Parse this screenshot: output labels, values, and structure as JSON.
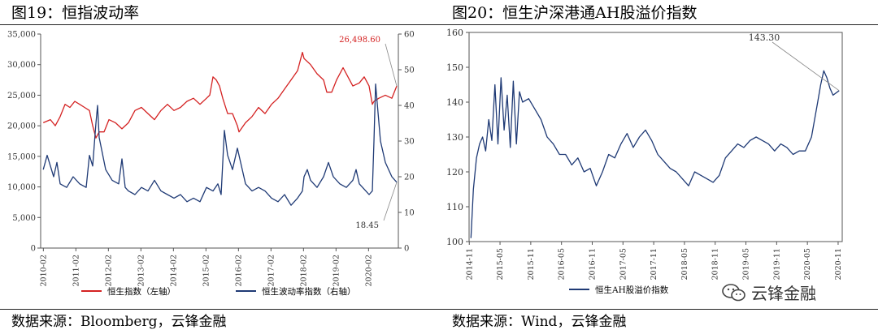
{
  "left_panel": {
    "title": "图19：恒指波动率",
    "source": "数据来源：Bloomberg，云锋金融"
  },
  "right_panel": {
    "title": "图20：恒生沪深港通AH股溢价指数",
    "source": "数据来源：Wind，云锋金融"
  },
  "watermark": {
    "icon": "wechat-icon",
    "text": "云锋金融"
  },
  "colors": {
    "red": "#d42222",
    "navy": "#1f3a75",
    "axis": "#555555"
  },
  "chart_data": [
    {
      "type": "line",
      "title": "",
      "x_tick_labels": [
        "2010-02",
        "2011-02",
        "2012-02",
        "2013-02",
        "2014-02",
        "2015-02",
        "2016-02",
        "2017-02",
        "2018-02",
        "2019-02",
        "2020-02"
      ],
      "x_range": [
        2010.0,
        2021.0
      ],
      "left_axis": {
        "range": [
          0,
          35000
        ],
        "tick_labels": [
          "0",
          "5,000",
          "10,000",
          "15,000",
          "20,000",
          "25,000",
          "30,000",
          "35,000"
        ]
      },
      "right_axis": {
        "range": [
          0,
          60
        ],
        "tick_labels": [
          "0",
          "10",
          "20",
          "30",
          "40",
          "50",
          "60"
        ]
      },
      "legend_position": "bottom",
      "annotations": [
        {
          "text": "26,498.60",
          "series": "恒生指数（左轴）"
        },
        {
          "text": "18.45",
          "series": "恒生波动率指数（右轴）"
        }
      ],
      "series": [
        {
          "name": "恒生指数（左轴）",
          "axis": "left",
          "x": [
            2010.08,
            2010.3,
            2010.45,
            2010.6,
            2010.75,
            2010.9,
            2011.05,
            2011.2,
            2011.35,
            2011.5,
            2011.6,
            2011.7,
            2011.8,
            2011.95,
            2012.1,
            2012.3,
            2012.5,
            2012.7,
            2012.9,
            2013.1,
            2013.3,
            2013.5,
            2013.7,
            2013.9,
            2014.1,
            2014.3,
            2014.5,
            2014.7,
            2014.9,
            2015.1,
            2015.2,
            2015.3,
            2015.4,
            2015.5,
            2015.6,
            2015.75,
            2015.9,
            2016.05,
            2016.1,
            2016.3,
            2016.5,
            2016.7,
            2016.9,
            2017.1,
            2017.3,
            2017.5,
            2017.7,
            2017.9,
            2018.05,
            2018.1,
            2018.3,
            2018.5,
            2018.7,
            2018.8,
            2018.95,
            2019.1,
            2019.3,
            2019.45,
            2019.6,
            2019.8,
            2019.95,
            2020.1,
            2020.2,
            2020.25,
            2020.4,
            2020.6,
            2020.8,
            2020.95
          ],
          "values": [
            20500,
            21000,
            20000,
            21500,
            23500,
            23000,
            24000,
            23500,
            23000,
            22500,
            20000,
            18000,
            19000,
            19000,
            21000,
            20500,
            19500,
            20500,
            22500,
            23000,
            22000,
            21000,
            22500,
            23500,
            22500,
            23000,
            24000,
            24500,
            23500,
            24500,
            25000,
            28000,
            27500,
            26500,
            24500,
            22000,
            22000,
            20000,
            19000,
            20500,
            21500,
            23000,
            22000,
            23500,
            24500,
            26000,
            27500,
            29000,
            32000,
            31000,
            30000,
            28500,
            27500,
            25500,
            25500,
            27500,
            29500,
            28000,
            26500,
            27000,
            28000,
            26500,
            23500,
            24000,
            24500,
            25000,
            24500,
            26498
          ]
        },
        {
          "name": "恒生波动率指数（右轴）",
          "axis": "right",
          "x": [
            2010.08,
            2010.2,
            2010.4,
            2010.5,
            2010.6,
            2010.8,
            2011.0,
            2011.2,
            2011.4,
            2011.5,
            2011.6,
            2011.7,
            2011.75,
            2011.8,
            2012.0,
            2012.2,
            2012.4,
            2012.5,
            2012.6,
            2012.7,
            2012.9,
            2013.1,
            2013.3,
            2013.5,
            2013.7,
            2013.9,
            2014.1,
            2014.3,
            2014.5,
            2014.7,
            2014.9,
            2015.1,
            2015.3,
            2015.45,
            2015.55,
            2015.65,
            2015.75,
            2015.9,
            2016.05,
            2016.15,
            2016.3,
            2016.5,
            2016.7,
            2016.9,
            2017.1,
            2017.3,
            2017.5,
            2017.7,
            2017.9,
            2018.05,
            2018.1,
            2018.2,
            2018.3,
            2018.5,
            2018.7,
            2018.85,
            2019.0,
            2019.2,
            2019.4,
            2019.6,
            2019.7,
            2019.8,
            2020.0,
            2020.1,
            2020.2,
            2020.25,
            2020.3,
            2020.45,
            2020.6,
            2020.8,
            2020.95
          ],
          "values": [
            22,
            26,
            20,
            24,
            18,
            17,
            20,
            18,
            17,
            26,
            23,
            35,
            40,
            31,
            22,
            19,
            18,
            25,
            17,
            16,
            15,
            17,
            16,
            19,
            16,
            15,
            14,
            15,
            13,
            14,
            13,
            17,
            16,
            18,
            15,
            33,
            26,
            22,
            28,
            24,
            18,
            16,
            17,
            16,
            14,
            13,
            15,
            12,
            14,
            16,
            20,
            22,
            19,
            17,
            20,
            24,
            20,
            18,
            17,
            19,
            22,
            18,
            16,
            15,
            16,
            30,
            46,
            30,
            24,
            20,
            18.45
          ]
        }
      ]
    },
    {
      "type": "line",
      "title": "",
      "x_tick_labels": [
        "2014-11",
        "2015-05",
        "2015-11",
        "2016-05",
        "2016-11",
        "2017-05",
        "2017-11",
        "2018-05",
        "2018-11",
        "2019-05",
        "2019-11",
        "2020-05",
        "2020-11"
      ],
      "x_range": [
        2014.83,
        2020.9
      ],
      "y_axis": {
        "range": [
          100,
          160
        ],
        "tick_labels": [
          "100",
          "110",
          "120",
          "130",
          "140",
          "150",
          "160"
        ]
      },
      "legend_position": "bottom",
      "annotations": [
        {
          "text": "143.30",
          "series": "恒生AH股溢价指数"
        }
      ],
      "series": [
        {
          "name": "恒生AH股溢价指数",
          "x": [
            2014.86,
            2014.9,
            2014.95,
            2015.0,
            2015.05,
            2015.1,
            2015.15,
            2015.2,
            2015.25,
            2015.3,
            2015.35,
            2015.4,
            2015.45,
            2015.5,
            2015.55,
            2015.6,
            2015.65,
            2015.7,
            2015.8,
            2015.9,
            2016.0,
            2016.1,
            2016.2,
            2016.3,
            2016.4,
            2016.5,
            2016.6,
            2016.7,
            2016.8,
            2016.9,
            2017.0,
            2017.1,
            2017.2,
            2017.3,
            2017.4,
            2017.5,
            2017.6,
            2017.7,
            2017.8,
            2017.9,
            2018.0,
            2018.1,
            2018.2,
            2018.3,
            2018.4,
            2018.5,
            2018.6,
            2018.7,
            2018.8,
            2018.9,
            2019.0,
            2019.1,
            2019.2,
            2019.3,
            2019.4,
            2019.5,
            2019.6,
            2019.7,
            2019.8,
            2019.9,
            2020.0,
            2020.1,
            2020.2,
            2020.3,
            2020.4,
            2020.45,
            2020.5,
            2020.55,
            2020.6,
            2020.65,
            2020.7,
            2020.75,
            2020.85
          ],
          "values": [
            101,
            115,
            124,
            128,
            130,
            126,
            135,
            129,
            145,
            128,
            147,
            132,
            142,
            127,
            146,
            128,
            143,
            140,
            141,
            138,
            135,
            130,
            128,
            125,
            125,
            122,
            124,
            120,
            121,
            116,
            120,
            125,
            124,
            128,
            131,
            127,
            130,
            132,
            129,
            125,
            123,
            121,
            120,
            118,
            116,
            120,
            119,
            118,
            117,
            119,
            124,
            126,
            128,
            127,
            129,
            130,
            129,
            128,
            126,
            128,
            127,
            125,
            126,
            126,
            130,
            135,
            140,
            145,
            149,
            147,
            144,
            142,
            143.3
          ]
        }
      ]
    }
  ]
}
